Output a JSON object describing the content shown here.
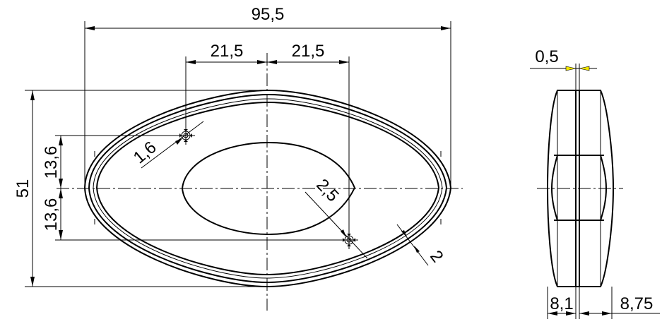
{
  "dimensions": {
    "overall_width": "95,5",
    "hole_offset_left": "21,5",
    "hole_offset_right": "21,5",
    "overall_height": "51",
    "hole_offset_upper": "13,6",
    "hole_offset_lower": "13,6",
    "small_hole_diameter": "1,6",
    "hole_diameter": "2,5",
    "rim_width": "2",
    "seam_gap": "0,5",
    "side_left_thickness": "8,1",
    "side_right_thickness": "8,75"
  },
  "colors": {
    "line": "#000000",
    "arrow_highlight": "#f2e600",
    "background": "#ffffff"
  }
}
